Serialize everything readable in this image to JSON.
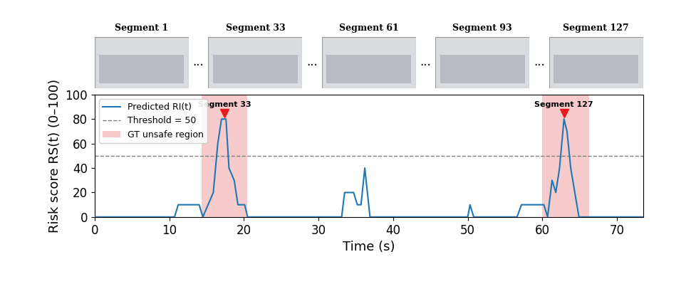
{
  "chart_data": {
    "type": "line",
    "xlabel": "Time (s)",
    "ylabel": "Risk score RS(t) (0–100)",
    "xlim": [
      0,
      73.5
    ],
    "ylim": [
      0,
      100
    ],
    "xticks": [
      0,
      10,
      20,
      30,
      40,
      50,
      60,
      70
    ],
    "yticks": [
      0,
      20,
      40,
      60,
      80,
      100
    ],
    "legend": "upper left",
    "series": [
      {
        "name": "Predicted RI(t)",
        "color": "#1f77b4",
        "x": [
          0,
          10.7,
          11.2,
          14.0,
          14.5,
          15.9,
          16.5,
          17.0,
          17.6,
          18.0,
          18.7,
          19.2,
          20.1,
          20.5,
          33.1,
          33.5,
          34.7,
          35.2,
          35.7,
          36.2,
          36.9,
          50.0,
          50.3,
          50.8,
          56.6,
          57.2,
          60.2,
          60.7,
          61.3,
          61.8,
          62.3,
          62.9,
          63.3,
          63.8,
          64.9,
          73.5
        ],
        "values": [
          0,
          0,
          10,
          10,
          0,
          20,
          60,
          80,
          80,
          40,
          30,
          10,
          10,
          0,
          0,
          20,
          20,
          10,
          10,
          40,
          0,
          0,
          10,
          0,
          0,
          10,
          10,
          0,
          30,
          20,
          40,
          80,
          70,
          40,
          0,
          0
        ]
      }
    ],
    "threshold": {
      "value": 50,
      "name": "Threshold = 50",
      "color": "#808080",
      "line_style": "dashed"
    },
    "regions": {
      "name": "GT unsafe region",
      "color": "#f4b6b6",
      "spans": [
        [
          14.3,
          20.4
        ],
        [
          60.0,
          66.3
        ]
      ]
    },
    "markers": [
      {
        "label": "Segment 33",
        "x": 17.4,
        "y": 85
      },
      {
        "label": "Segment 127",
        "x": 62.9,
        "y": 85
      }
    ],
    "marker_color": "#e41a1c",
    "segment_images": [
      "Segment 1",
      "Segment 33",
      "Segment 61",
      "Segment 93",
      "Segment 127"
    ],
    "ellipsis": "···"
  }
}
